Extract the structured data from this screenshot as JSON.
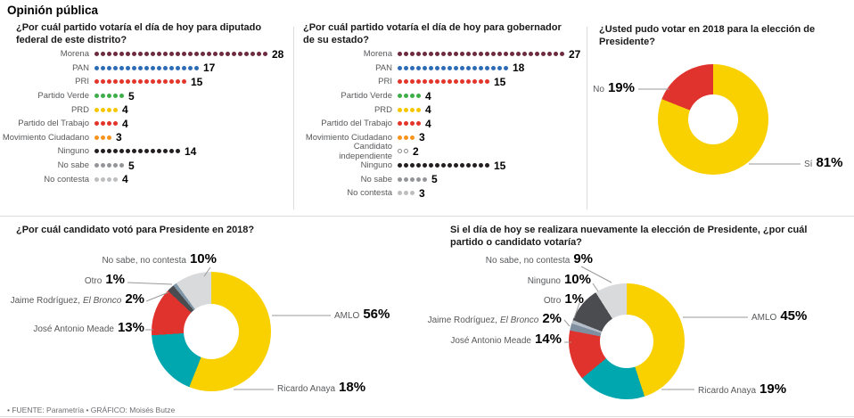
{
  "page_title": "Opinión pública",
  "footer": "• FUENTE: Parametría  • GRÁFICO: Moisés Butze",
  "chart_data": [
    {
      "type": "bar",
      "subtype": "unit-dot-plot",
      "title": "¿Por cuál partido votaría el día de hoy para diputado federal de este distrito?",
      "rows": [
        {
          "label": "Morena",
          "value": 28,
          "color": "#6e2b3f"
        },
        {
          "label": "PAN",
          "value": 17,
          "color": "#2d6cb5"
        },
        {
          "label": "PRI",
          "value": 15,
          "color": "#e4352b"
        },
        {
          "label": "Partido Verde",
          "value": 5,
          "color": "#3fae49"
        },
        {
          "label": "PRD",
          "value": 4,
          "color": "#f6c700"
        },
        {
          "label": "Partido del Trabajo",
          "value": 4,
          "color": "#e4352b"
        },
        {
          "label": "Movimiento Ciudadano",
          "value": 3,
          "color": "#f7941d"
        },
        {
          "label": "Ninguno",
          "value": 14,
          "color": "#231f20"
        },
        {
          "label": "No sabe",
          "value": 5,
          "color": "#939598"
        },
        {
          "label": "No contesta",
          "value": 4,
          "color": "#bcbec0"
        }
      ]
    },
    {
      "type": "bar",
      "subtype": "unit-dot-plot",
      "title": "¿Por cuál partido votaría el día de hoy para gobernador de su estado?",
      "rows": [
        {
          "label": "Morena",
          "value": 27,
          "color": "#6e2b3f"
        },
        {
          "label": "PAN",
          "value": 18,
          "color": "#2d6cb5"
        },
        {
          "label": "PRI",
          "value": 15,
          "color": "#e4352b"
        },
        {
          "label": "Partido Verde",
          "value": 4,
          "color": "#3fae49"
        },
        {
          "label": "PRD",
          "value": 4,
          "color": "#f6c700"
        },
        {
          "label": "Partido del Trabajo",
          "value": 4,
          "color": "#e4352b"
        },
        {
          "label": "Movimiento Ciudadano",
          "value": 3,
          "color": "#f7941d"
        },
        {
          "label": "Candidato independiente",
          "value": 2,
          "color": "#ffffff",
          "outline": "#8c8c8c"
        },
        {
          "label": "Ninguno",
          "value": 15,
          "color": "#231f20"
        },
        {
          "label": "No sabe",
          "value": 5,
          "color": "#939598"
        },
        {
          "label": "No contesta",
          "value": 3,
          "color": "#bcbec0"
        }
      ]
    },
    {
      "type": "pie",
      "donut": true,
      "title": "¿Usted pudo votar en 2018 para la elección de Presidente?",
      "slices": [
        {
          "label": "Sí",
          "value": 81,
          "color": "#f9d000"
        },
        {
          "label": "No",
          "value": 19,
          "color": "#e1332d"
        }
      ]
    },
    {
      "type": "pie",
      "donut": true,
      "title": "¿Por cuál candidato votó para Presidente en 2018?",
      "slices": [
        {
          "label": "AMLO",
          "value": 56,
          "color": "#f9d000"
        },
        {
          "label": "Ricardo Anaya",
          "value": 18,
          "color": "#00a7ae"
        },
        {
          "label": "José Antonio Meade",
          "value": 13,
          "color": "#e1332d"
        },
        {
          "label": "Jaime Rodríguez, El Bronco",
          "label_main": "Jaime Rodríguez,",
          "label_em": "El Bronco",
          "value": 2,
          "color": "#4a4c50"
        },
        {
          "label": "Otro",
          "value": 1,
          "color": "#8097a8"
        },
        {
          "label": "No sabe, no contesta",
          "value": 10,
          "color": "#d9dadb"
        }
      ]
    },
    {
      "type": "pie",
      "donut": true,
      "title": "Si el día de hoy se realizara nuevamente la elección de Presidente, ¿por cuál partido o candidato votaría?",
      "slices": [
        {
          "label": "AMLO",
          "value": 45,
          "color": "#f9d000"
        },
        {
          "label": "Ricardo Anaya",
          "value": 19,
          "color": "#00a7ae"
        },
        {
          "label": "José Antonio Meade",
          "value": 14,
          "color": "#e1332d"
        },
        {
          "label": "Jaime Rodríguez, El Bronco",
          "label_main": "Jaime Rodríguez,",
          "label_em": "El Bronco",
          "value": 2,
          "color": "#7f8fa0"
        },
        {
          "label": "Otro",
          "value": 1,
          "color": "#b5bec6"
        },
        {
          "label": "Ninguno",
          "value": 10,
          "color": "#4a4c50"
        },
        {
          "label": "No sabe, no contesta",
          "value": 9,
          "color": "#d9dadb"
        }
      ]
    }
  ]
}
